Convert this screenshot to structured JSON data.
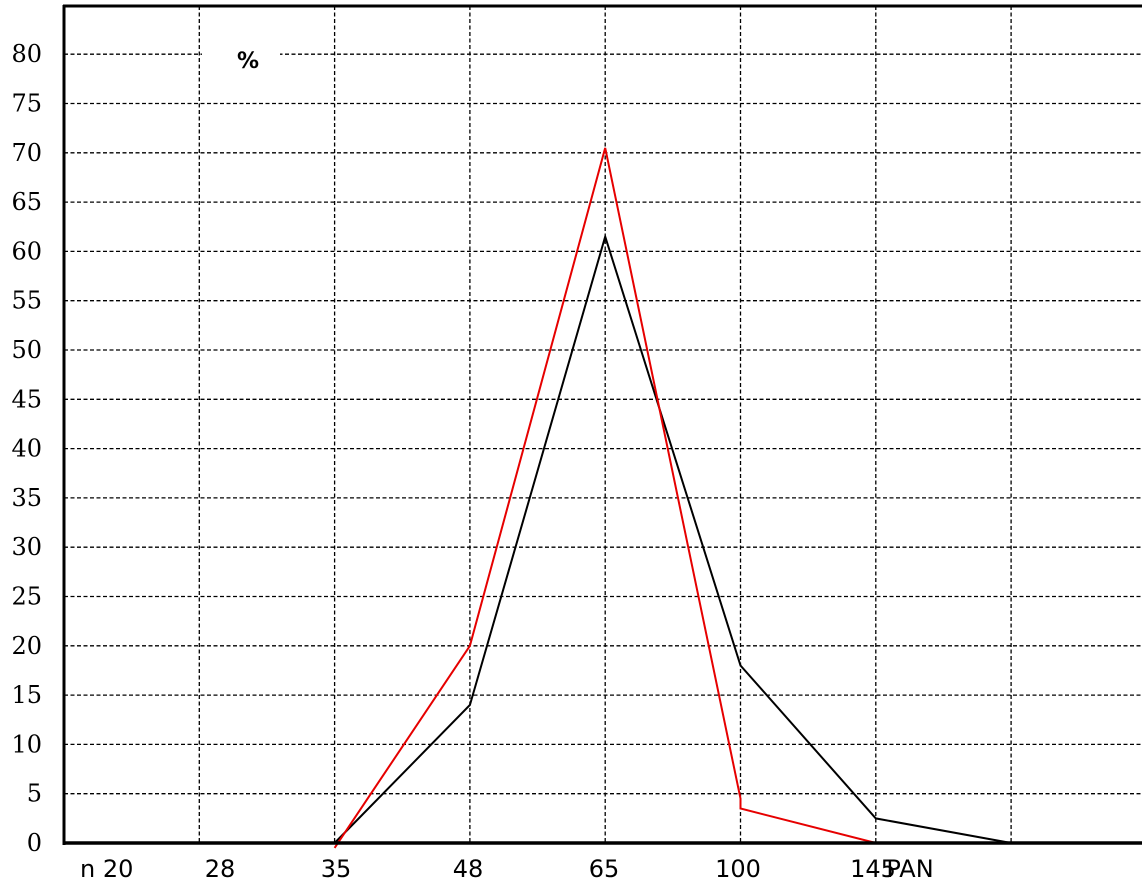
{
  "chart_data": {
    "type": "line",
    "unit_label": "%",
    "categories": [
      "n 20",
      "28",
      "35",
      "48",
      "65",
      "100",
      "145",
      "PAN"
    ],
    "y_ticks": [
      "0",
      "5",
      "10",
      "15",
      "20",
      "25",
      "30",
      "35",
      "40",
      "45",
      "50",
      "55",
      "60",
      "65",
      "70",
      "75",
      "80"
    ],
    "ylim": [
      0,
      85
    ],
    "grid": true,
    "series": [
      {
        "color": "#000000",
        "points": [
          [
            2,
            0
          ],
          [
            3,
            14
          ],
          [
            4,
            61.5
          ],
          [
            5,
            18
          ],
          [
            6,
            2.5
          ],
          [
            7,
            0
          ]
        ]
      },
      {
        "color": "#e60000",
        "points": [
          [
            2,
            -0.5
          ],
          [
            3,
            20
          ],
          [
            4,
            70.5
          ],
          [
            5,
            4.5
          ],
          [
            5,
            3.5
          ],
          [
            6,
            0
          ],
          [
            7,
            0
          ]
        ]
      }
    ]
  }
}
